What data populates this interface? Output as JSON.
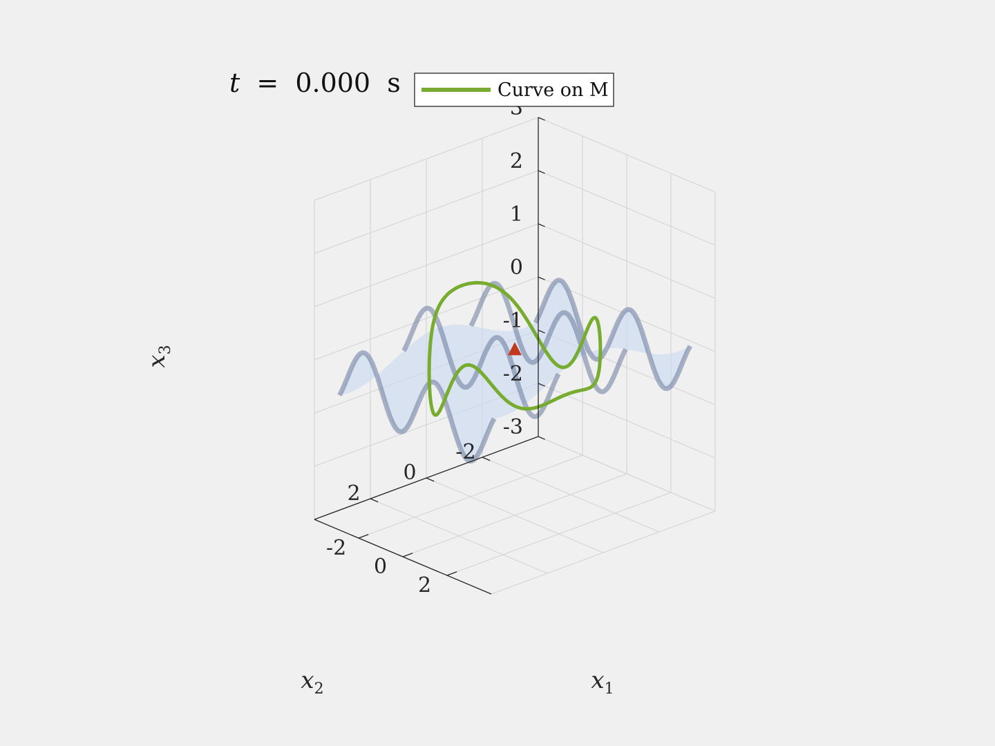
{
  "title": {
    "var": "t",
    "eq": "=",
    "value": "0.000",
    "unit": "s"
  },
  "legend": {
    "label": "Curve on M",
    "line_color": "#77ac30"
  },
  "colors": {
    "background": "#f0f0f0",
    "axis": "#262626",
    "grid": "#d6d6d6",
    "surface_fill": "#c8d9f0",
    "surface_edge": "#6c7a9c",
    "curve": "#77ac30",
    "marker": "#c0391c"
  },
  "chart_data": {
    "type": "surface3d",
    "title": "t = 0.000 s",
    "axes": {
      "x1": {
        "label": "x",
        "sub": "1",
        "lim": [
          -4,
          4
        ],
        "ticks": [
          -2,
          0,
          2
        ],
        "tick_labels": [
          "-2",
          "0",
          "2"
        ]
      },
      "x2": {
        "label": "x",
        "sub": "2",
        "lim": [
          -4,
          4
        ],
        "ticks": [
          -2,
          0,
          2
        ],
        "tick_labels": [
          "-2",
          "0",
          "2"
        ]
      },
      "x3": {
        "label": "x",
        "sub": "3",
        "lim": [
          -3,
          3
        ],
        "ticks": [
          -3,
          -2,
          -1,
          0,
          1,
          2,
          3
        ],
        "tick_labels": [
          "-3",
          "-2",
          "-1",
          "0",
          "1",
          "2",
          "3"
        ]
      }
    },
    "surface": {
      "name": "M",
      "equation": "x3 = 0.6 sin(2 x1) + 0.3 cos(x2)",
      "x1_range": [
        -3.5,
        3.5
      ],
      "x2_range": [
        -3.5,
        3.5
      ],
      "edge_lines_x2": [
        -3.5,
        -1.2,
        1.2,
        3.5
      ]
    },
    "series": [
      {
        "name": "Curve on M",
        "type": "line",
        "parametric": "closed loop x1 = 2.4 cos(s), x2 = 2.4 sin(s), x3 on M",
        "points": 200
      }
    ],
    "marker": {
      "type": "triangle",
      "x1": 0,
      "x2": 0,
      "x3": 0.1
    }
  }
}
